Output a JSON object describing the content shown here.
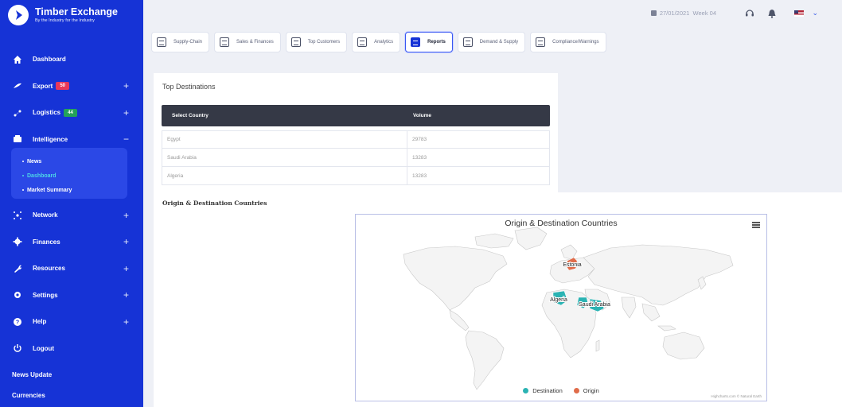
{
  "brand": {
    "title": "Timber Exchange",
    "subtitle": "By the Industry for the Industry"
  },
  "sidebar": {
    "items": [
      {
        "label": "Dashboard",
        "icon": "home-icon"
      },
      {
        "label": "Export",
        "icon": "tree-icon",
        "badge": "50",
        "badge_color": "#e8385a"
      },
      {
        "label": "Logistics",
        "icon": "truck-icon",
        "badge": "44",
        "badge_color": "#23a25a"
      },
      {
        "label": "Intelligence",
        "icon": "chart-icon"
      },
      {
        "label": "Network",
        "icon": "network-icon"
      },
      {
        "label": "Finances",
        "icon": "gear-icon"
      },
      {
        "label": "Resources",
        "icon": "wrench-icon"
      },
      {
        "label": "Settings",
        "icon": "settings-icon"
      },
      {
        "label": "Help",
        "icon": "help-icon"
      },
      {
        "label": "Logout",
        "icon": "power-icon"
      }
    ],
    "intelligence_sub": [
      "News",
      "Dashboard",
      "Market Summary"
    ],
    "footer": [
      "News Update",
      "Currencies"
    ]
  },
  "topbar": {
    "date": "27/01/2021",
    "week": "Week 04"
  },
  "tabs": [
    "Supply-Chain",
    "Sales & Finances",
    "Top Customers",
    "Analytics",
    "Reports",
    "Demand & Supply",
    "Compliance/Warnings"
  ],
  "top_destinations": {
    "title": "Top Destinations",
    "columns": [
      "Select Country",
      "Volume"
    ],
    "rows": [
      {
        "country": "Egypt",
        "volume": "29783"
      },
      {
        "country": "Saudi Arabia",
        "volume": "13283"
      },
      {
        "country": "Algeria",
        "volume": "13283"
      }
    ]
  },
  "map": {
    "section_title": "Origin & Destination Countries",
    "chart_title": "Origin & Destination Countries",
    "legend": [
      {
        "name": "Destination",
        "color": "#2bb3b3"
      },
      {
        "name": "Origin",
        "color": "#e06c4a"
      }
    ],
    "labels": {
      "origin": "Estonia",
      "dest1": "Algeria",
      "dest2": "Saudi Arabia"
    },
    "credits": "Highcharts.com © Natural Earth"
  }
}
